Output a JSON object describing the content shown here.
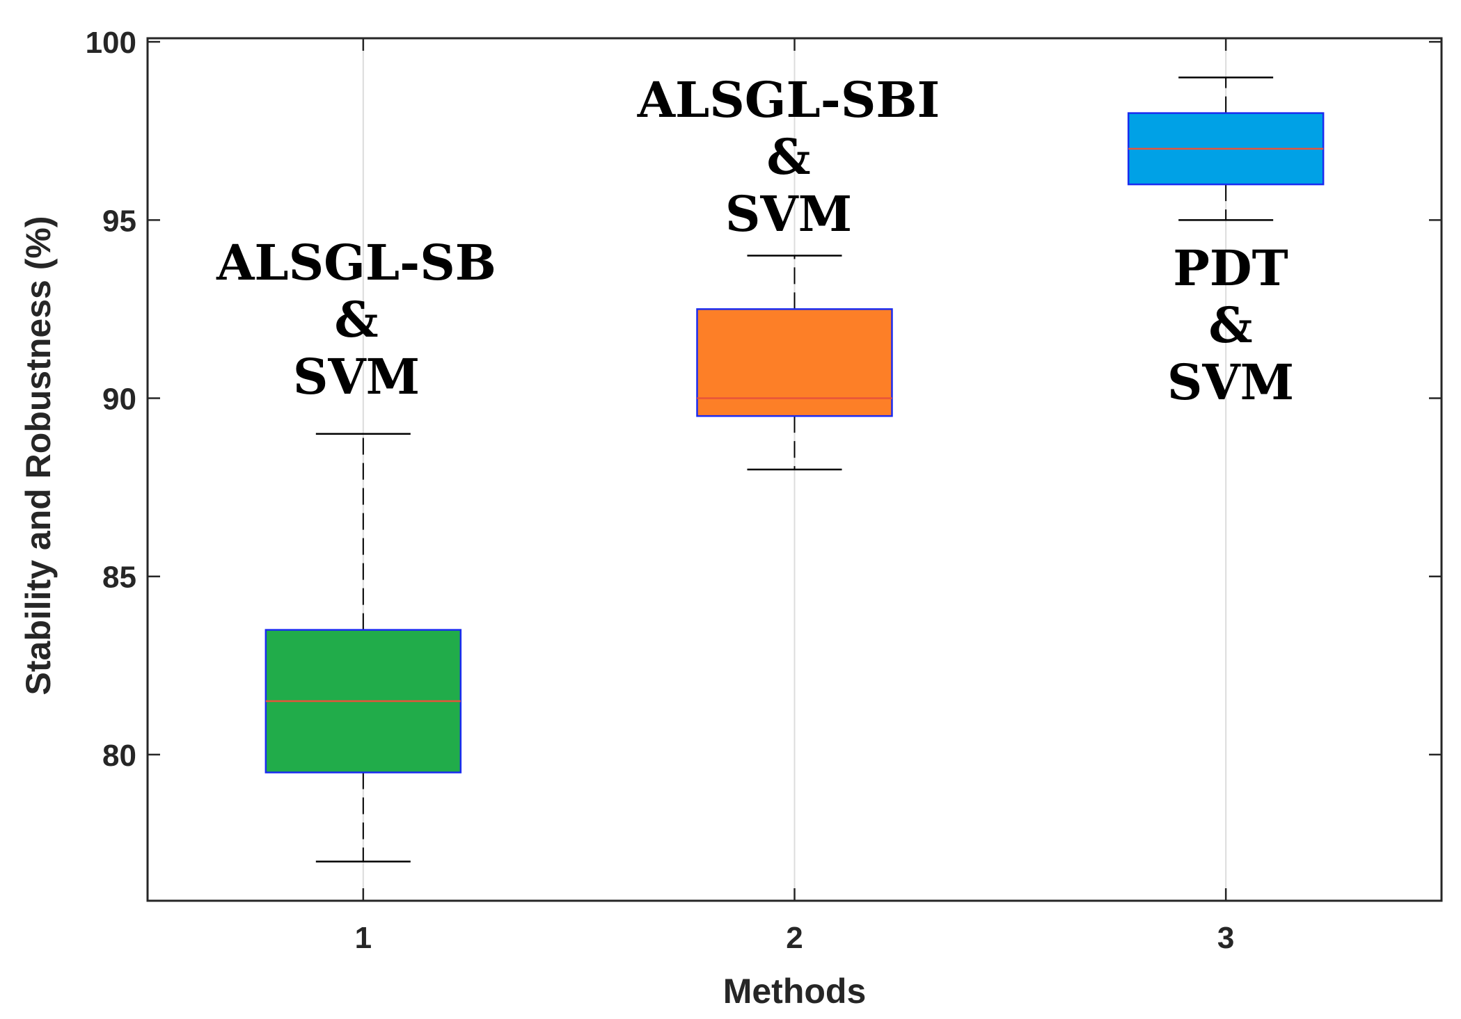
{
  "chart_data": {
    "type": "box",
    "title": "",
    "xlabel": "Methods",
    "ylabel": "Stability and Robustness (%)",
    "ylim": [
      75.9,
      100.1
    ],
    "xlim": [
      0.5,
      3.5
    ],
    "yticks": [
      "80",
      "85",
      "90",
      "95",
      "100"
    ],
    "xticks": [
      "1",
      "2",
      "3"
    ],
    "grid": "vertical",
    "series": [
      {
        "category": "1",
        "name": "ALSGL-SB & SVM",
        "whisker_low": 77,
        "q1": 79.5,
        "median": 81.5,
        "q3": 83.5,
        "whisker_high": 89,
        "color": "#21ac4a"
      },
      {
        "category": "2",
        "name": "ALSGL-SBI & SVM",
        "whisker_low": 88,
        "q1": 89.5,
        "median": 90,
        "q3": 92.5,
        "whisker_high": 94,
        "color": "#fd7f27"
      },
      {
        "category": "3",
        "name": "PDT & SVM",
        "whisker_low": 95,
        "q1": 96,
        "median": 97,
        "q3": 98,
        "whisker_high": 99,
        "color": "#00a1e6"
      }
    ],
    "annotations": [
      {
        "for": "1",
        "lines": [
          "ALSGL-SB",
          "&",
          "SVM"
        ]
      },
      {
        "for": "2",
        "lines": [
          "ALSGL-SBI",
          "&",
          "SVM"
        ]
      },
      {
        "for": "3",
        "lines": [
          "PDT",
          "&",
          "SVM"
        ]
      }
    ],
    "colors": {
      "box_edge": "#1a2bf0",
      "median": "#e8543a",
      "whisker": "#000000",
      "axis": "#262626",
      "grid": "#dcdcdc"
    }
  }
}
